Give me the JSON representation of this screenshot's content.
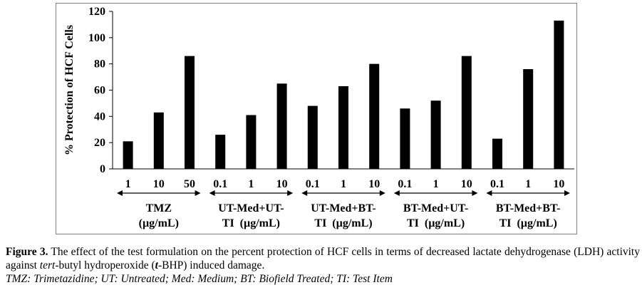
{
  "chart_data": {
    "type": "bar",
    "ylabel": "% Protection of HCF Cells",
    "ylim": [
      0,
      120
    ],
    "yticks": [
      0,
      20,
      40,
      60,
      80,
      100,
      120
    ],
    "grid": false,
    "bar_color": "#000000",
    "groups": [
      {
        "label_line1": "TMZ",
        "label_line2": "(µg/mL)",
        "categories": [
          "1",
          "10",
          "50"
        ],
        "values": [
          21,
          43,
          86
        ]
      },
      {
        "label_line1": "UT-Med+UT-",
        "label_line2": "TI  (µg/mL)",
        "categories": [
          "0.1",
          "1",
          "10"
        ],
        "values": [
          26,
          41,
          65
        ]
      },
      {
        "label_line1": "UT-Med+BT-",
        "label_line2": "TI  (µg/mL)",
        "categories": [
          "0.1",
          "1",
          "10"
        ],
        "values": [
          48,
          63,
          80
        ]
      },
      {
        "label_line1": "BT-Med+UT-",
        "label_line2": "TI  (µg/mL)",
        "categories": [
          "0.1",
          "1",
          "10"
        ],
        "values": [
          46,
          52,
          86
        ]
      },
      {
        "label_line1": "BT-Med+BT-",
        "label_line2": "TI  (µg/mL)",
        "categories": [
          "0.1",
          "1",
          "10"
        ],
        "values": [
          23,
          76,
          113
        ]
      }
    ]
  },
  "caption": {
    "figure_label": "Figure 3.",
    "text_before_tert": " The effect of the test formulation on the percent protection of HCF cells in terms of decreased lactate dehydrogenase (LDH) activity against ",
    "tert": "tert",
    "text_mid": "-butyl hydroperoxide (",
    "t": "t",
    "text_after": "-BHP) induced damage.",
    "abbreviations": "TMZ: Trimetazidine; UT: Untreated; Med: Medium; BT: Biofield Treated; TI: Test Item"
  }
}
